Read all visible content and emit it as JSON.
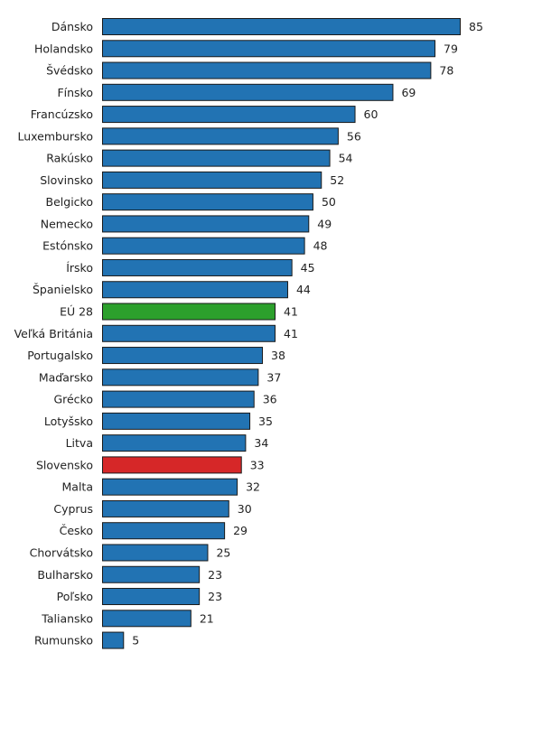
{
  "chart_data": {
    "type": "bar",
    "orientation": "horizontal",
    "title": "",
    "xlabel": "",
    "ylabel": "",
    "xlim": [
      0,
      85
    ],
    "grid": false,
    "legend": "none",
    "colors": {
      "default": "#2273b3",
      "eu": "#2ca02c",
      "highlight": "#d62728"
    },
    "categories": [
      "Dánsko",
      "Holandsko",
      "Švédsko",
      "Fínsko",
      "Francúzsko",
      "Luxembursko",
      "Rakúsko",
      "Slovinsko",
      "Belgicko",
      "Nemecko",
      "Estónsko",
      "Írsko",
      "Španielsko",
      "EÚ 28",
      "Veľká Británia",
      "Portugalsko",
      "Maďarsko",
      "Grécko",
      "Lotyšsko",
      "Litva",
      "Slovensko",
      "Malta",
      "Cyprus",
      "Česko",
      "Chorvátsko",
      "Bulharsko",
      "Poľsko",
      "Taliansko",
      "Rumunsko"
    ],
    "values": [
      85,
      79,
      78,
      69,
      60,
      56,
      54,
      52,
      50,
      49,
      48,
      45,
      44,
      41,
      41,
      38,
      37,
      36,
      35,
      34,
      33,
      32,
      30,
      29,
      25,
      23,
      23,
      21,
      5
    ],
    "bar_colors": [
      "default",
      "default",
      "default",
      "default",
      "default",
      "default",
      "default",
      "default",
      "default",
      "default",
      "default",
      "default",
      "default",
      "eu",
      "default",
      "default",
      "default",
      "default",
      "default",
      "default",
      "highlight",
      "default",
      "default",
      "default",
      "default",
      "default",
      "default",
      "default",
      "default"
    ]
  }
}
